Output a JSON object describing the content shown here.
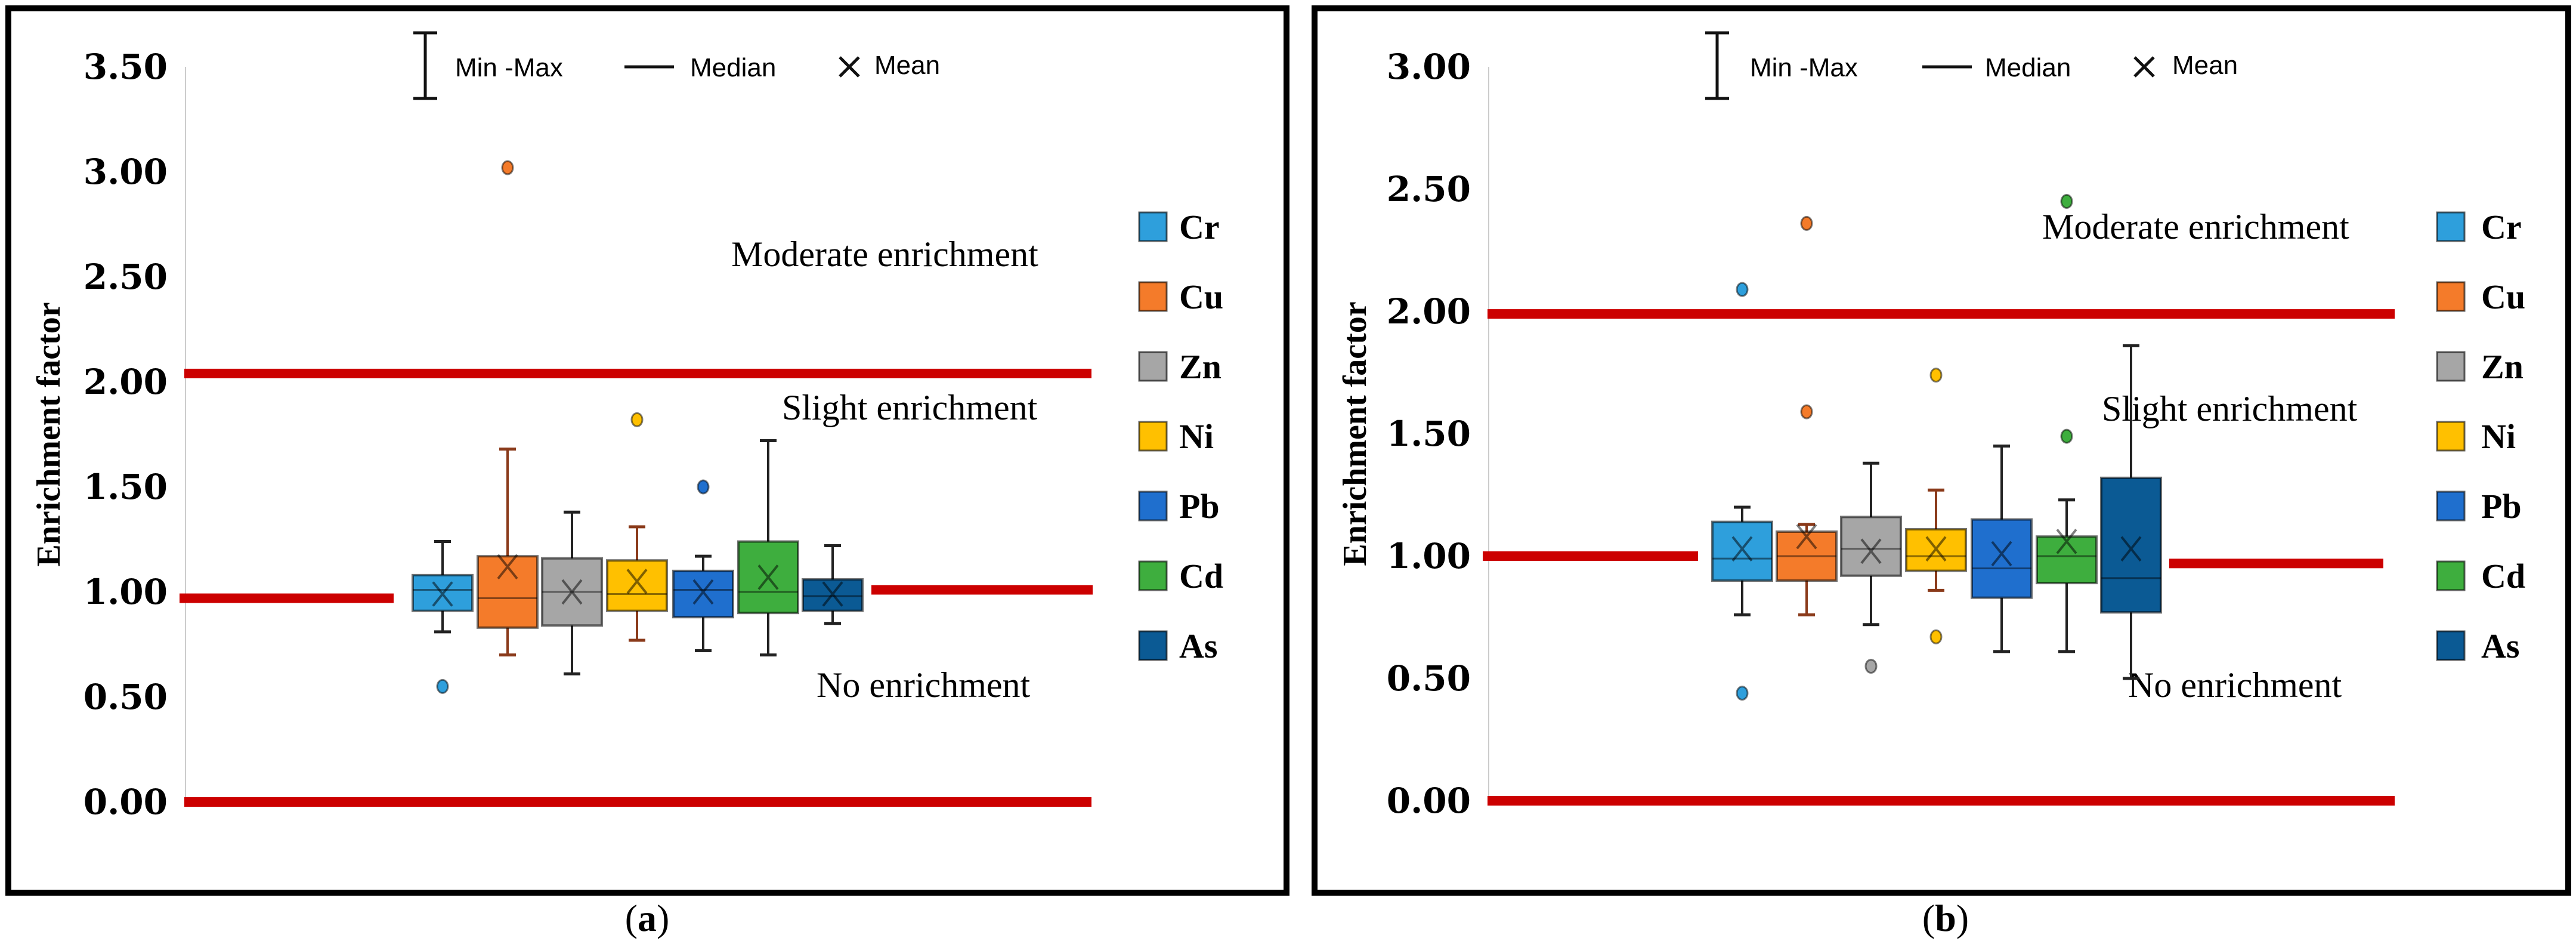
{
  "legend_top": {
    "minmax": "Min -Max",
    "median": "Median",
    "mean": "Mean"
  },
  "colors": {
    "Cr": "#2e9fdc",
    "Cu": "#f47b2a",
    "Zn": "#a6a6a6",
    "Ni": "#ffc000",
    "Pb": "#1f6fce",
    "Cd": "#3eae3e",
    "As": "#0b5a94",
    "threshold": "#cc0000"
  },
  "chart_data": [
    {
      "type": "box",
      "caption": "(a)",
      "caption_letter": "a",
      "ylabel": "Enrichment factor",
      "ylim": [
        0,
        3.5
      ],
      "yticks": [
        "0.00",
        "0.50",
        "1.00",
        "1.50",
        "2.00",
        "2.50",
        "3.00",
        "3.50"
      ],
      "legend": [
        "Cr",
        "Cu",
        "Zn",
        "Ni",
        "Pb",
        "Cd",
        "As"
      ],
      "annotations": [
        "Moderate enrichment",
        "Slight enrichment",
        "No enrichment"
      ],
      "thresholds": {
        "upper": 2.04,
        "middle_left": 0.97,
        "middle_right": 1.01,
        "lower": 0.0
      },
      "series": [
        {
          "name": "Cr",
          "min": 0.81,
          "q1": 0.91,
          "median": 1.01,
          "q3": 1.08,
          "max": 1.24,
          "mean": 0.99,
          "outliers": [
            0.55
          ]
        },
        {
          "name": "Cu",
          "min": 0.7,
          "q1": 0.83,
          "median": 0.97,
          "q3": 1.17,
          "max": 1.68,
          "mean": 1.12,
          "outliers": [
            3.02
          ]
        },
        {
          "name": "Zn",
          "min": 0.61,
          "q1": 0.84,
          "median": 1.0,
          "q3": 1.16,
          "max": 1.38,
          "mean": 1.0,
          "outliers": []
        },
        {
          "name": "Ni",
          "min": 0.77,
          "q1": 0.91,
          "median": 0.99,
          "q3": 1.15,
          "max": 1.31,
          "mean": 1.05,
          "outliers": [
            1.82
          ]
        },
        {
          "name": "Pb",
          "min": 0.72,
          "q1": 0.88,
          "median": 1.01,
          "q3": 1.1,
          "max": 1.17,
          "mean": 1.0,
          "outliers": [
            1.5
          ]
        },
        {
          "name": "Cd",
          "min": 0.7,
          "q1": 0.9,
          "median": 1.0,
          "q3": 1.24,
          "max": 1.72,
          "mean": 1.07,
          "outliers": []
        },
        {
          "name": "As",
          "min": 0.85,
          "q1": 0.91,
          "median": 0.98,
          "q3": 1.06,
          "max": 1.22,
          "mean": 0.99,
          "outliers": []
        }
      ]
    },
    {
      "type": "box",
      "caption": "(b)",
      "caption_letter": "b",
      "ylabel": "Enrichment factor",
      "ylim": [
        0,
        3.0
      ],
      "yticks": [
        "0.00",
        "0.50",
        "1.00",
        "1.50",
        "2.00",
        "2.50",
        "3.00"
      ],
      "legend": [
        "Cr",
        "Cu",
        "Zn",
        "Ni",
        "Pb",
        "Cd",
        "As"
      ],
      "annotations": [
        "Moderate enrichment",
        "Slight enrichment",
        "No enrichment"
      ],
      "thresholds": {
        "upper": 1.99,
        "middle_left": 1.0,
        "middle_right": 0.97,
        "lower": 0.0
      },
      "series": [
        {
          "name": "Cr",
          "min": 0.76,
          "q1": 0.9,
          "median": 0.99,
          "q3": 1.14,
          "max": 1.2,
          "mean": 1.03,
          "outliers": [
            2.09,
            0.44
          ]
        },
        {
          "name": "Cu",
          "min": 0.76,
          "q1": 0.9,
          "median": 1.0,
          "q3": 1.1,
          "max": 1.13,
          "mean": 1.08,
          "outliers": [
            2.36,
            1.59
          ]
        },
        {
          "name": "Zn",
          "min": 0.72,
          "q1": 0.92,
          "median": 1.03,
          "q3": 1.16,
          "max": 1.38,
          "mean": 1.02,
          "outliers": [
            0.55
          ]
        },
        {
          "name": "Ni",
          "min": 0.86,
          "q1": 0.94,
          "median": 1.0,
          "q3": 1.11,
          "max": 1.27,
          "mean": 1.03,
          "outliers": [
            1.74,
            0.67
          ]
        },
        {
          "name": "Pb",
          "min": 0.61,
          "q1": 0.83,
          "median": 0.95,
          "q3": 1.15,
          "max": 1.45,
          "mean": 1.01,
          "outliers": []
        },
        {
          "name": "Cd",
          "min": 0.61,
          "q1": 0.89,
          "median": 1.0,
          "q3": 1.08,
          "max": 1.23,
          "mean": 1.06,
          "outliers": [
            2.45,
            1.49
          ]
        },
        {
          "name": "As",
          "min": 0.5,
          "q1": 0.77,
          "median": 0.91,
          "q3": 1.32,
          "max": 1.86,
          "mean": 1.03,
          "outliers": []
        }
      ]
    }
  ]
}
